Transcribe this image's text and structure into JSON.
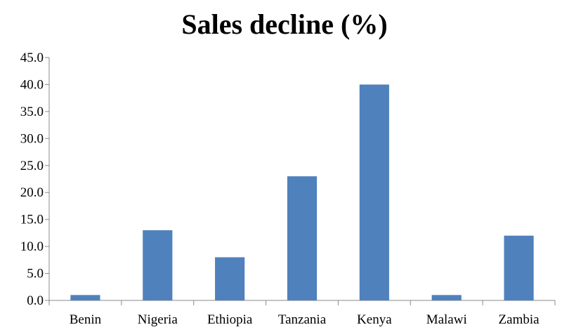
{
  "chart_data": {
    "type": "bar",
    "title": "Sales decline (%)",
    "xlabel": "",
    "ylabel": "",
    "categories": [
      "Benin",
      "Nigeria",
      "Ethiopia",
      "Tanzania",
      "Kenya",
      "Malawi",
      "Zambia"
    ],
    "series": [
      {
        "values": [
          1,
          13,
          8,
          23,
          40,
          1,
          12
        ]
      }
    ],
    "ylim": [
      0,
      45
    ],
    "yticks": [
      "0.0",
      "5.0",
      "10.0",
      "15.0",
      "20.0",
      "25.0",
      "30.0",
      "35.0",
      "40.0",
      "45.0"
    ],
    "grid": false,
    "legend": "none",
    "colors": {
      "bar": "#4f81bd",
      "axis": "#888888"
    }
  }
}
